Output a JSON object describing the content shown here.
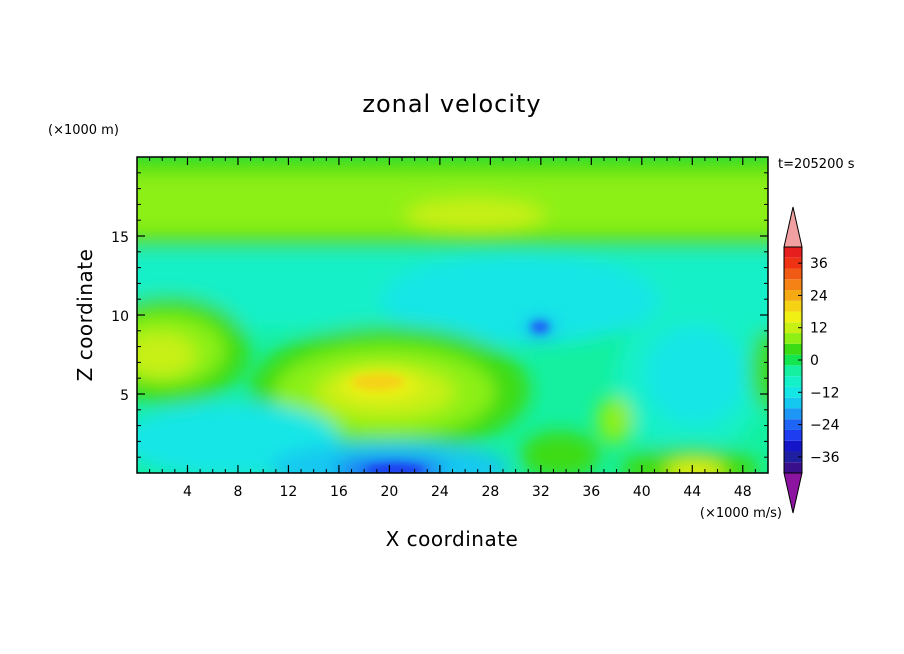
{
  "chart_data": {
    "type": "contour",
    "title": "zonal velocity",
    "time_label": "t=205200 s",
    "xlabel": "X coordinate",
    "ylabel": "Z coordinate",
    "y_unit_label": "(×1000 m)",
    "colorbar_unit_label": "(×1000 m/s)",
    "xlim": [
      0,
      50
    ],
    "ylim": [
      0,
      20
    ],
    "x_ticks": [
      4,
      8,
      12,
      16,
      20,
      24,
      28,
      32,
      36,
      40,
      44,
      48
    ],
    "y_ticks": [
      5,
      10,
      15
    ],
    "colorbar": {
      "levels": [
        -42,
        -39,
        -36,
        -33,
        -30,
        -27,
        -24,
        -21,
        -18,
        -15,
        -12,
        -9,
        -6,
        -3,
        0,
        3,
        6,
        9,
        12,
        15,
        18,
        21,
        24,
        27,
        30,
        33,
        36,
        39,
        42
      ],
      "tick_values": [
        -36,
        -24,
        -12,
        0,
        12,
        24,
        36
      ],
      "tick_labels": [
        "−36",
        "−24",
        "−12",
        "0",
        "12",
        "24",
        "36"
      ],
      "colors": [
        "#3a0f8c",
        "#1e1ea0",
        "#1414c8",
        "#1e3cf0",
        "#1e64f5",
        "#1e96f5",
        "#14c8f0",
        "#14e6e6",
        "#14f0c8",
        "#14f0a0",
        "#14e650",
        "#3cdc14",
        "#8cf014",
        "#c8f014",
        "#f0f014",
        "#f5d214",
        "#f5aa14",
        "#f58214",
        "#f05a14",
        "#f03214",
        "#e61e1e"
      ],
      "under_color": "#8c14a0",
      "over_color": "#f0a0a0"
    },
    "features": [
      {
        "x": 20,
        "z": 5.5,
        "value": 12
      },
      {
        "x": 6,
        "z": 8,
        "value": 9
      },
      {
        "x": 44,
        "z": 0.3,
        "value": 12
      },
      {
        "x": 20,
        "z": 0.4,
        "value": -24
      },
      {
        "x": 32,
        "z": 9,
        "value": -18
      },
      {
        "x": 44,
        "z": 7,
        "value": -12
      },
      {
        "x": 25,
        "z": 17.5,
        "value": 6
      }
    ]
  }
}
